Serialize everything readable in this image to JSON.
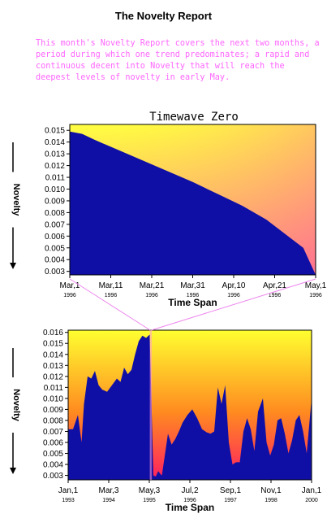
{
  "page": {
    "title": "The Novelty Report",
    "intro": "This month's Novelty Report covers the next two months, a period during which one trend predominates; a rapid and continuous decent into Novelty that will reach the deepest levels of novelty in early May."
  },
  "colors": {
    "fill": "#0f0fa6",
    "bg_top": "#ffff40",
    "bg_bottom": "#ff7a8c",
    "bg2_bottom": "#ff2060",
    "connector": "#ee88ee"
  },
  "chart_data": [
    {
      "type": "area",
      "title": "Timewave Zero",
      "xlabel": "Time Span",
      "ylabel": "Novelty",
      "ylim": [
        0.0027,
        0.0155
      ],
      "yticks": [
        "0.015",
        "0.014",
        "0.013",
        "0.012",
        "0.011",
        "0.010",
        "0.009",
        "0.008",
        "0.007",
        "0.006",
        "0.005",
        "0.004",
        "0.003"
      ],
      "xticks": [
        {
          "label": "Mar,1",
          "year": "1996"
        },
        {
          "label": "Mar,11",
          "year": "1996"
        },
        {
          "label": "Mar,21",
          "year": "1996"
        },
        {
          "label": "Mar,31",
          "year": "1996"
        },
        {
          "label": "Apr,10",
          "year": "1996"
        },
        {
          "label": "Apr,21",
          "year": "1996"
        },
        {
          "label": "May,1",
          "year": "1996"
        }
      ],
      "x": [
        0,
        0.05,
        0.1,
        0.2,
        0.3,
        0.4,
        0.5,
        0.6,
        0.7,
        0.8,
        0.9,
        0.95,
        1.0
      ],
      "values": [
        0.0149,
        0.0147,
        0.0142,
        0.0133,
        0.0124,
        0.0115,
        0.0106,
        0.0096,
        0.0086,
        0.0074,
        0.0058,
        0.005,
        0.0027
      ]
    },
    {
      "type": "area",
      "title": "",
      "xlabel": "Time Span",
      "ylabel": "Novelty",
      "ylim": [
        0.0026,
        0.0162
      ],
      "yticks": [
        "0.016",
        "0.015",
        "0.014",
        "0.013",
        "0.012",
        "0.011",
        "0.010",
        "0.009",
        "0.008",
        "0.007",
        "0.006",
        "0.005",
        "0.004",
        "0.003"
      ],
      "xticks": [
        {
          "label": "Jan,1",
          "year": "1993"
        },
        {
          "label": "Mar,3",
          "year": "1994"
        },
        {
          "label": "May,3",
          "year": "1995"
        },
        {
          "label": "Jul,2",
          "year": "1996"
        },
        {
          "label": "Sep,1",
          "year": "1997"
        },
        {
          "label": "Nov,1",
          "year": "1998"
        },
        {
          "label": "Jan,1",
          "year": "2000"
        }
      ],
      "x": [
        0,
        0.02,
        0.04,
        0.055,
        0.065,
        0.08,
        0.095,
        0.11,
        0.125,
        0.14,
        0.16,
        0.18,
        0.2,
        0.215,
        0.23,
        0.245,
        0.26,
        0.275,
        0.29,
        0.305,
        0.32,
        0.335,
        0.35,
        0.36,
        0.37,
        0.38,
        0.385,
        0.395,
        0.41,
        0.425,
        0.44,
        0.455,
        0.47,
        0.49,
        0.51,
        0.53,
        0.55,
        0.57,
        0.585,
        0.6,
        0.615,
        0.63,
        0.645,
        0.66,
        0.675,
        0.69,
        0.705,
        0.72,
        0.735,
        0.75,
        0.765,
        0.78,
        0.8,
        0.815,
        0.83,
        0.845,
        0.86,
        0.875,
        0.89,
        0.905,
        0.92,
        0.935,
        0.95,
        0.965,
        0.98,
        1.0
      ],
      "values": [
        0.0072,
        0.0072,
        0.0085,
        0.006,
        0.0095,
        0.012,
        0.0118,
        0.0125,
        0.0112,
        0.0108,
        0.0106,
        0.0112,
        0.0118,
        0.0115,
        0.0128,
        0.0122,
        0.0126,
        0.014,
        0.0152,
        0.0157,
        0.0155,
        0.0158,
        0.003,
        0.0029,
        0.0034,
        0.0031,
        0.003,
        0.0045,
        0.0068,
        0.0058,
        0.0063,
        0.007,
        0.0078,
        0.0085,
        0.009,
        0.0082,
        0.0072,
        0.0069,
        0.0068,
        0.007,
        0.011,
        0.0095,
        0.0112,
        0.006,
        0.004,
        0.0042,
        0.0042,
        0.007,
        0.0082,
        0.0072,
        0.0052,
        0.0088,
        0.01,
        0.006,
        0.0048,
        0.0058,
        0.008,
        0.0082,
        0.0068,
        0.005,
        0.0062,
        0.008,
        0.0085,
        0.007,
        0.005,
        0.01
      ]
    }
  ]
}
